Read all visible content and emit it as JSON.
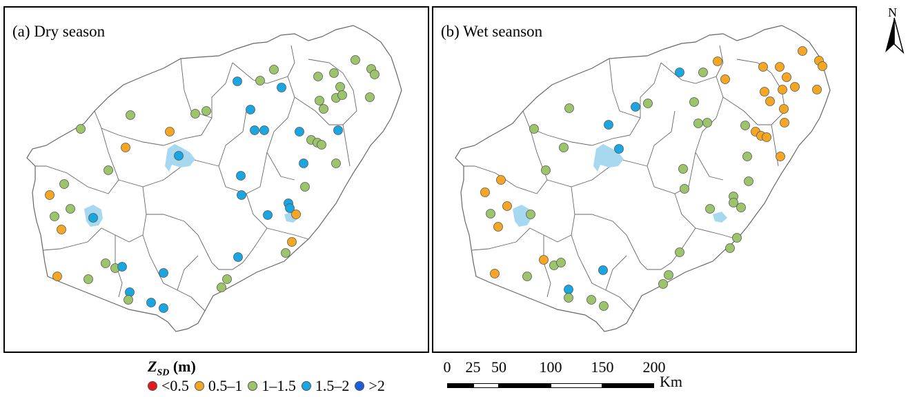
{
  "panels": [
    {
      "id": "a",
      "title": "(a) Dry season"
    },
    {
      "id": "b",
      "title": "(b) Wet seanson"
    }
  ],
  "north_label": "N",
  "legend": {
    "title_var": "Z",
    "title_sub": "SD",
    "title_unit": "(m)",
    "items": [
      {
        "label": "<0.5",
        "color": "#e31a1c"
      },
      {
        "label": "0.5–1",
        "color": "#f5a623"
      },
      {
        "label": "1–1.5",
        "color": "#9bc46b"
      },
      {
        "label": "1.5–2",
        "color": "#1aa6e0"
      },
      {
        "label": ">2",
        "color": "#1a5ee0"
      }
    ]
  },
  "scale_bar": {
    "ticks": [
      "0",
      "25",
      "50",
      "100",
      "150",
      "200"
    ],
    "tick_values": [
      0,
      25,
      50,
      100,
      150,
      200
    ],
    "unit": "Km"
  },
  "colors": {
    "<0.5": "#e31a1c",
    "0.5–1": "#f5a623",
    "1–1.5": "#9bc46b",
    "1.5–2": "#1aa6e0",
    ">2": "#1a5ee0",
    "water": "#a6d8f0",
    "boundary": "#666666"
  }
}
